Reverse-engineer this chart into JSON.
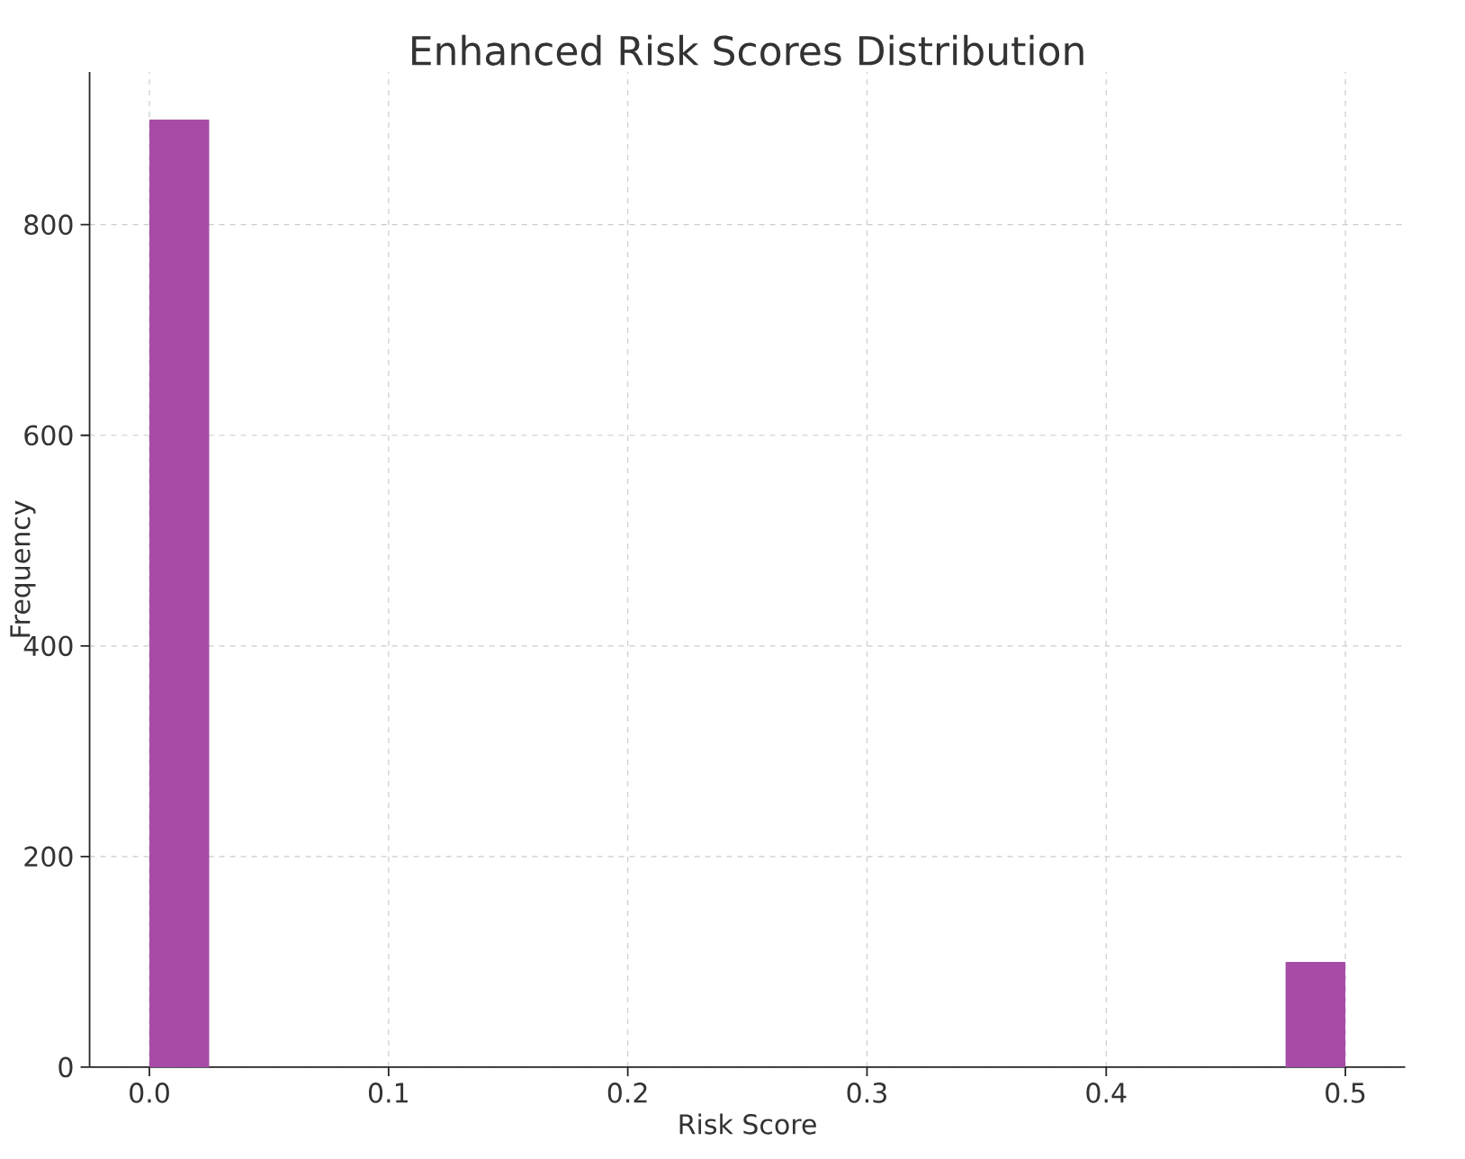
{
  "chart_data": {
    "type": "histogram",
    "title": "Enhanced Risk Scores Distribution",
    "xlabel": "Risk Score",
    "ylabel": "Frequency",
    "bins": [
      0,
      0.025,
      0.05,
      0.075,
      0.1,
      0.125,
      0.15,
      0.175,
      0.2,
      0.225,
      0.25,
      0.275,
      0.3,
      0.325,
      0.35,
      0.375,
      0.4,
      0.425,
      0.45,
      0.475,
      0.5
    ],
    "values": [
      900,
      0,
      0,
      0,
      0,
      0,
      0,
      0,
      0,
      0,
      0,
      0,
      0,
      0,
      0,
      0,
      0,
      0,
      0,
      100
    ],
    "color": "#a64ca6",
    "xlim": [
      -0.025,
      0.525
    ],
    "ylim": [
      0,
      945
    ],
    "xticks": [
      {
        "value": 0,
        "label": "0.0"
      },
      {
        "value": 0.1,
        "label": "0.1"
      },
      {
        "value": 0.2,
        "label": "0.2"
      },
      {
        "value": 0.3,
        "label": "0.3"
      },
      {
        "value": 0.4,
        "label": "0.4"
      },
      {
        "value": 0.5,
        "label": "0.5"
      }
    ],
    "yticks": [
      0,
      200,
      400,
      600,
      800
    ],
    "grid": true
  }
}
